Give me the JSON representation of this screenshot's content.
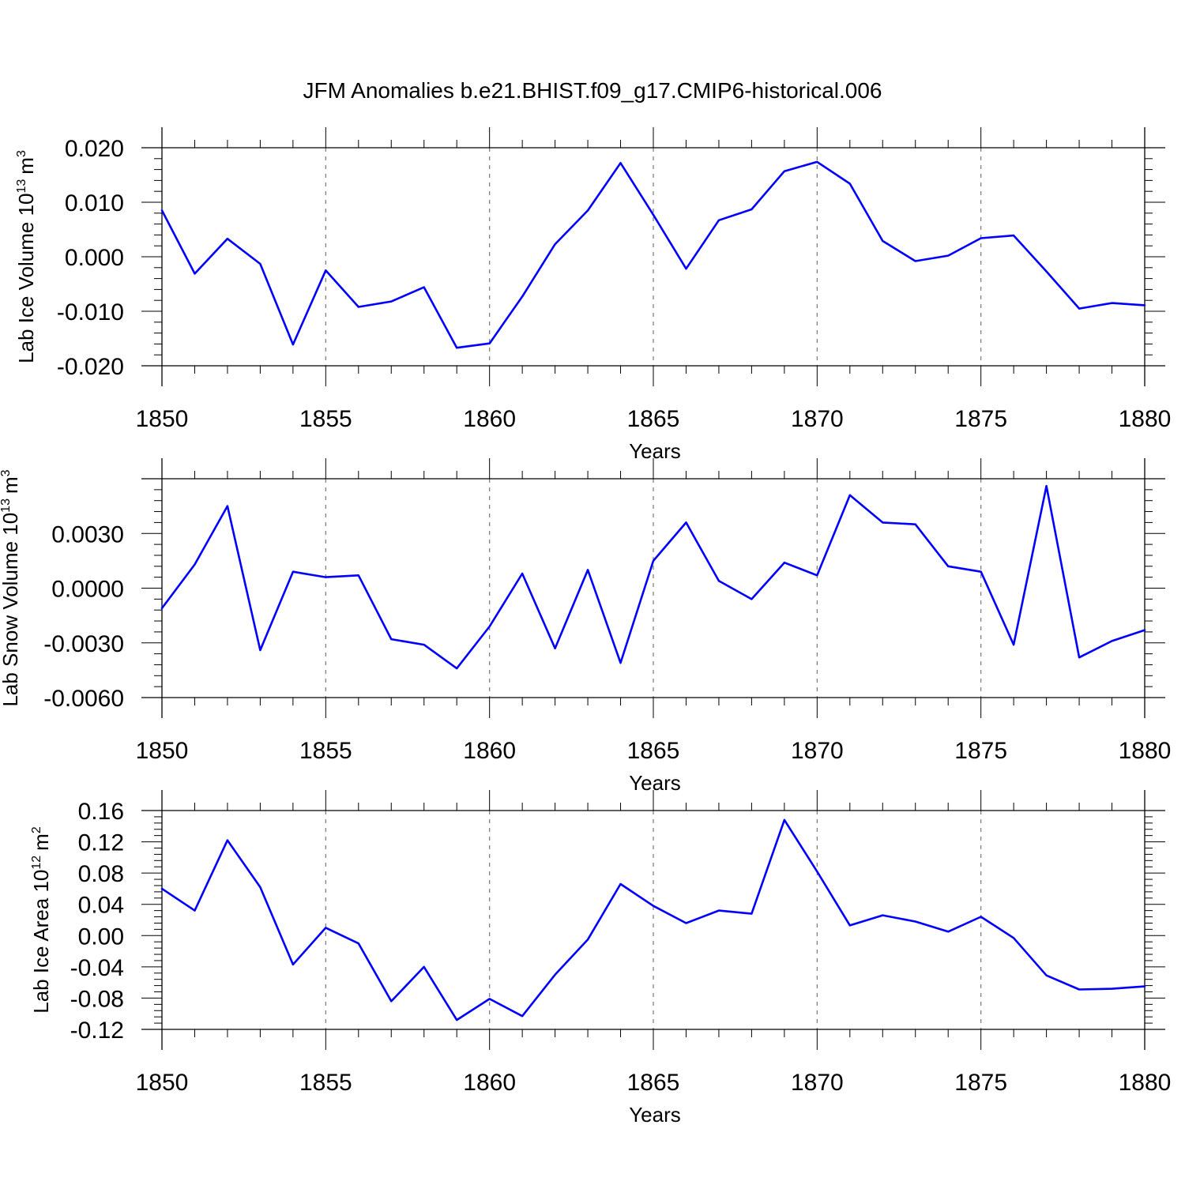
{
  "title": "JFM Anomalies b.e21.BHIST.f09_g17.CMIP6-historical.006",
  "colors": {
    "line": "#0000ff",
    "grid": "#777777",
    "axis": "#000000"
  },
  "chart_data": [
    {
      "type": "line",
      "xlabel": "Years",
      "ylabel_main": "Lab Ice Volume 10",
      "ylabel_exponent": "13",
      "ylabel_unit": "m",
      "ylabel_unit_power": "3",
      "xlim": [
        1850,
        1880
      ],
      "ylim": [
        -0.02,
        0.02
      ],
      "x_ticks": [
        1850,
        1855,
        1860,
        1865,
        1870,
        1875,
        1880
      ],
      "x_tick_labels": [
        "1850",
        "1855",
        "1860",
        "1865",
        "1870",
        "1875",
        "1880"
      ],
      "y_ticks": [
        0.02,
        0.01,
        0.0,
        -0.01,
        -0.02
      ],
      "y_tick_labels": [
        "0.020",
        "0.010",
        "0.000",
        "-0.010",
        "-0.020"
      ],
      "grid": "vertical dashed at major x ticks",
      "series": [
        {
          "name": "Lab Ice Volume",
          "x": [
            1850,
            1851,
            1852,
            1853,
            1854,
            1855,
            1856,
            1857,
            1858,
            1859,
            1860,
            1861,
            1862,
            1863,
            1864,
            1865,
            1866,
            1867,
            1868,
            1869,
            1870,
            1871,
            1872,
            1873,
            1874,
            1875,
            1876,
            1877,
            1878,
            1879,
            1880
          ],
          "values": [
            0.0085,
            -0.0031,
            0.0033,
            -0.0013,
            -0.0161,
            -0.0025,
            -0.0092,
            -0.0082,
            -0.0056,
            -0.0167,
            -0.0159,
            -0.0073,
            0.0023,
            0.0085,
            0.0172,
            0.0077,
            -0.0022,
            0.0067,
            0.0087,
            0.0157,
            0.0174,
            0.0134,
            0.0029,
            -0.0008,
            0.0002,
            0.0034,
            0.0039,
            -0.0027,
            -0.0095,
            -0.0085,
            -0.0089
          ]
        }
      ]
    },
    {
      "type": "line",
      "xlabel": "Years",
      "ylabel_main": "Lab Snow Volume 10",
      "ylabel_exponent": "13",
      "ylabel_unit": "m",
      "ylabel_unit_power": "3",
      "xlim": [
        1850,
        1880
      ],
      "ylim": [
        -0.006,
        0.006
      ],
      "x_ticks": [
        1850,
        1855,
        1860,
        1865,
        1870,
        1875,
        1880
      ],
      "x_tick_labels": [
        "1850",
        "1855",
        "1860",
        "1865",
        "1870",
        "1875",
        "1880"
      ],
      "y_ticks": [
        0.003,
        0.0,
        -0.003,
        -0.006
      ],
      "y_tick_labels": [
        "0.0030",
        "0.0000",
        "-0.0030",
        "-0.0060"
      ],
      "grid": "vertical dashed at major x ticks",
      "series": [
        {
          "name": "Lab Snow Volume",
          "x": [
            1850,
            1851,
            1852,
            1853,
            1854,
            1855,
            1856,
            1857,
            1858,
            1859,
            1860,
            1861,
            1862,
            1863,
            1864,
            1865,
            1866,
            1867,
            1868,
            1869,
            1870,
            1871,
            1872,
            1873,
            1874,
            1875,
            1876,
            1877,
            1878,
            1879,
            1880
          ],
          "values": [
            -0.0011,
            0.0013,
            0.0045,
            -0.0034,
            0.0009,
            0.0006,
            0.0007,
            -0.0028,
            -0.0031,
            -0.0044,
            -0.0021,
            0.0008,
            -0.0033,
            0.001,
            -0.0041,
            0.0015,
            0.0036,
            0.0004,
            -0.0006,
            0.0014,
            0.0007,
            0.0051,
            0.0036,
            0.0035,
            0.0012,
            0.0009,
            -0.0031,
            0.0056,
            -0.0038,
            -0.0029,
            -0.0023
          ]
        }
      ]
    },
    {
      "type": "line",
      "xlabel": "Years",
      "ylabel_main": "Lab Ice Area 10",
      "ylabel_exponent": "12",
      "ylabel_unit": "m",
      "ylabel_unit_power": "2",
      "xlim": [
        1850,
        1880
      ],
      "ylim": [
        -0.12,
        0.16
      ],
      "x_ticks": [
        1850,
        1855,
        1860,
        1865,
        1870,
        1875,
        1880
      ],
      "x_tick_labels": [
        "1850",
        "1855",
        "1860",
        "1865",
        "1870",
        "1875",
        "1880"
      ],
      "y_ticks": [
        0.16,
        0.12,
        0.08,
        0.04,
        0.0,
        -0.04,
        -0.08,
        -0.12
      ],
      "y_tick_labels": [
        "0.16",
        "0.12",
        "0.08",
        "0.04",
        "0.00",
        "-0.04",
        "-0.08",
        "-0.12"
      ],
      "grid": "vertical dashed at major x ticks",
      "series": [
        {
          "name": "Lab Ice Area",
          "x": [
            1850,
            1851,
            1852,
            1853,
            1854,
            1855,
            1856,
            1857,
            1858,
            1859,
            1860,
            1861,
            1862,
            1863,
            1864,
            1865,
            1866,
            1867,
            1868,
            1869,
            1870,
            1871,
            1872,
            1873,
            1874,
            1875,
            1876,
            1877,
            1878,
            1879,
            1880
          ],
          "values": [
            0.06,
            0.032,
            0.122,
            0.062,
            -0.037,
            0.01,
            -0.01,
            -0.084,
            -0.04,
            -0.108,
            -0.081,
            -0.103,
            -0.05,
            -0.005,
            0.066,
            0.038,
            0.016,
            0.032,
            0.028,
            0.148,
            0.082,
            0.013,
            0.026,
            0.018,
            0.005,
            0.024,
            -0.003,
            -0.051,
            -0.069,
            -0.068,
            -0.065
          ]
        }
      ]
    }
  ]
}
